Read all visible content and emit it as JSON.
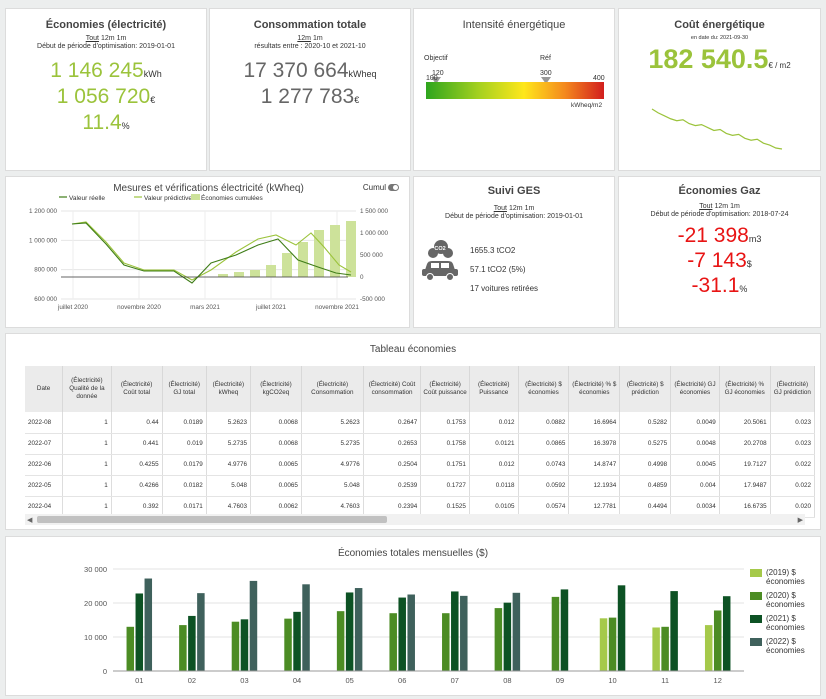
{
  "colors": {
    "accent": "#9bc33b",
    "negative": "#e81414",
    "dark_green": "#3f7d18",
    "bar2019": "#a5c94a",
    "bar2020": "#4c8c24",
    "bar2021": "#0d5224",
    "bar2022": "#3f615c"
  },
  "elec_savings": {
    "title": "Économies (électricité)",
    "period_all": "Tout",
    "period_12m": "12m",
    "period_1m": "1m",
    "start": "Début de période d'optimisation: 2019-01-01",
    "kwh_value": "1 146 245",
    "kwh_unit": "kWh",
    "money_value": "1 056 720",
    "money_unit": "€",
    "pct_value": "11.4",
    "pct_unit": "%"
  },
  "total_consumption": {
    "title": "Consommation totale",
    "period_12m": "12m",
    "period_1m": "1m",
    "range": "résultats entre : 2020-10 et 2021-10",
    "kwheq_value": "17 370 664",
    "kwheq_unit": "kWheq",
    "money_value": "1 277 783",
    "money_unit": "€"
  },
  "energy_intensity": {
    "title": "Intensité énergétique",
    "label_objective": "Objectif",
    "label_ref": "Réf",
    "objective_value": "120",
    "ref_value": "300",
    "scale_min": "100",
    "scale_max": "400",
    "unit": "kWheq/m2"
  },
  "energy_cost": {
    "title": "Coût énergétique",
    "date": "en date du: 2021-09-30",
    "value": "182 540.5",
    "unit": "€ / m2",
    "sparkline": [
      8.0,
      7.6,
      7.3,
      7.0,
      6.8,
      6.9,
      6.5,
      6.3,
      6.4,
      6.1,
      5.8,
      5.9,
      5.5,
      5.3,
      5.4,
      5.0,
      4.8,
      4.9,
      4.5,
      4.3,
      4.0,
      3.9
    ]
  },
  "mv_chart": {
    "title": "Mesures et vérifications électricité (kWheq)",
    "toggle_label": "Cumul",
    "legend": [
      "Valeur réelle",
      "Valeur prédictive",
      "Économies cumulées"
    ],
    "left_ticks": [
      "1 200 000",
      "1 000 000",
      "800 000",
      "600 000"
    ],
    "right_ticks": [
      "1 500 000",
      "1 000 000",
      "500 000",
      "0",
      "-500 000"
    ],
    "x_ticks": [
      "juillet 2020",
      "novembre 2020",
      "mars 2021",
      "juillet 2021",
      "novembre 2021"
    ]
  },
  "ges": {
    "title": "Suivi GES",
    "period_all": "Tout",
    "period_12m": "12m",
    "period_1m": "1m",
    "start": "Début de période d'optimisation: 2019-01-01",
    "co2_label": "CO2",
    "line1": "1655.3 tCO2",
    "line2": "57.1 tCO2 (5%)",
    "line3": "17 voitures retirées"
  },
  "gas_savings": {
    "title": "Économies Gaz",
    "period_all": "Tout",
    "period_12m": "12m",
    "period_1m": "1m",
    "start": "Début de période d'optimisation: 2018-07-24",
    "m3_value": "-21 398",
    "m3_unit": "m3",
    "money_value": "-7 143",
    "money_unit": "$",
    "pct_value": "-31.1",
    "pct_unit": "%"
  },
  "savings_table": {
    "title": "Tableau économies",
    "headers": [
      "Date",
      "(Électricité) Qualité de la donnée",
      "(Électricité) Coût total",
      "(Électricité) GJ total",
      "(Électricité) kWheq",
      "(Électricité) kgCO2eq",
      "(Électricité) Consommation",
      "(Électricité) Coût consommation",
      "(Électricité) Coût puissance",
      "(Électricité) Puissance",
      "(Électricité) $ économies",
      "(Électricité) % $ économies",
      "(Électricité) $ prédiction",
      "(Électricité) GJ économies",
      "(Électricité) % GJ économies",
      "(Électricité) GJ prédiction"
    ],
    "rows": [
      [
        "2022-08",
        "1",
        "0.44",
        "0.0189",
        "5.2623",
        "0.0068",
        "5.2623",
        "0.2647",
        "0.1753",
        "0.012",
        "0.0882",
        "16.6964",
        "0.5282",
        "0.0049",
        "20.5061",
        "0.023"
      ],
      [
        "2022-07",
        "1",
        "0.441",
        "0.019",
        "5.2735",
        "0.0068",
        "5.2735",
        "0.2653",
        "0.1758",
        "0.0121",
        "0.0865",
        "16.3978",
        "0.5275",
        "0.0048",
        "20.2708",
        "0.023"
      ],
      [
        "2022-06",
        "1",
        "0.4255",
        "0.0179",
        "4.9776",
        "0.0065",
        "4.9776",
        "0.2504",
        "0.1751",
        "0.012",
        "0.0743",
        "14.8747",
        "0.4998",
        "0.0045",
        "19.7127",
        "0.022"
      ],
      [
        "2022-05",
        "1",
        "0.4266",
        "0.0182",
        "5.048",
        "0.0065",
        "5.048",
        "0.2539",
        "0.1727",
        "0.0118",
        "0.0592",
        "12.1934",
        "0.4859",
        "0.004",
        "17.9487",
        "0.022"
      ],
      [
        "2022-04",
        "1",
        "0.392",
        "0.0171",
        "4.7603",
        "0.0062",
        "4.7603",
        "0.2394",
        "0.1525",
        "0.0105",
        "0.0574",
        "12.7781",
        "0.4494",
        "0.0034",
        "16.6735",
        "0.020"
      ]
    ]
  },
  "chart_data": {
    "type": "bar",
    "title": "Économies totales mensuelles ($)",
    "categories": [
      "01",
      "02",
      "03",
      "04",
      "05",
      "06",
      "07",
      "08",
      "09",
      "10",
      "11",
      "12"
    ],
    "ylim": [
      0,
      30000
    ],
    "y_ticks": [
      "30 000",
      "20 000",
      "10 000",
      "0"
    ],
    "series": [
      {
        "name": "(2019) $ économies",
        "values": [
          null,
          null,
          null,
          null,
          null,
          null,
          null,
          null,
          null,
          15500,
          12800,
          13500
        ]
      },
      {
        "name": "(2020) $ économies",
        "values": [
          13000,
          13500,
          14500,
          15400,
          17600,
          17000,
          17000,
          18500,
          21800,
          15700,
          13000,
          17800
        ]
      },
      {
        "name": "(2021) $ économies",
        "values": [
          22800,
          16200,
          15200,
          17400,
          23100,
          21600,
          23400,
          20100,
          24000,
          25200,
          23500,
          22000
        ]
      },
      {
        "name": "(2022) $ économies",
        "values": [
          27200,
          22900,
          26500,
          25500,
          24400,
          22500,
          22100,
          23000,
          null,
          null,
          null,
          null
        ]
      }
    ]
  }
}
